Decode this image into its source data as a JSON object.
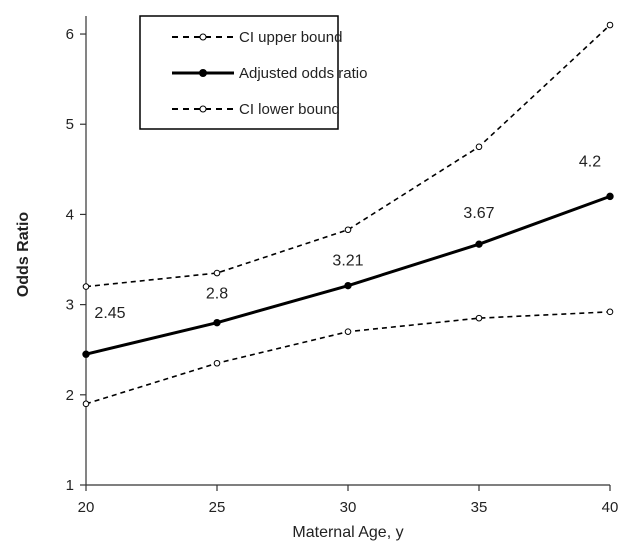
{
  "chart_data": {
    "type": "line",
    "title": "",
    "xlabel": "Maternal Age, y",
    "ylabel": "Odds Ratio",
    "x": [
      20,
      25,
      30,
      35,
      40
    ],
    "xlim": [
      20,
      40
    ],
    "ylim": [
      1,
      6.2
    ],
    "xticks": [
      "20",
      "25",
      "30",
      "35",
      "40"
    ],
    "yticks": [
      "1",
      "2",
      "3",
      "4",
      "5",
      "6"
    ],
    "grid": false,
    "legend_position": "top-left",
    "series": [
      {
        "name": "CI upper bound",
        "values": [
          3.2,
          3.35,
          3.83,
          4.75,
          6.1
        ],
        "style": "dashed",
        "marker": "open-circle"
      },
      {
        "name": "Adjusted odds ratio",
        "values": [
          2.45,
          2.8,
          3.21,
          3.67,
          4.2
        ],
        "style": "solid",
        "marker": "filled-circle"
      },
      {
        "name": "CI lower bound",
        "values": [
          1.9,
          2.35,
          2.7,
          2.85,
          2.92
        ],
        "style": "dashed",
        "marker": "open-circle"
      }
    ],
    "data_labels": [
      "2.45",
      "2.8",
      "3.21",
      "3.67",
      "4.2"
    ]
  }
}
